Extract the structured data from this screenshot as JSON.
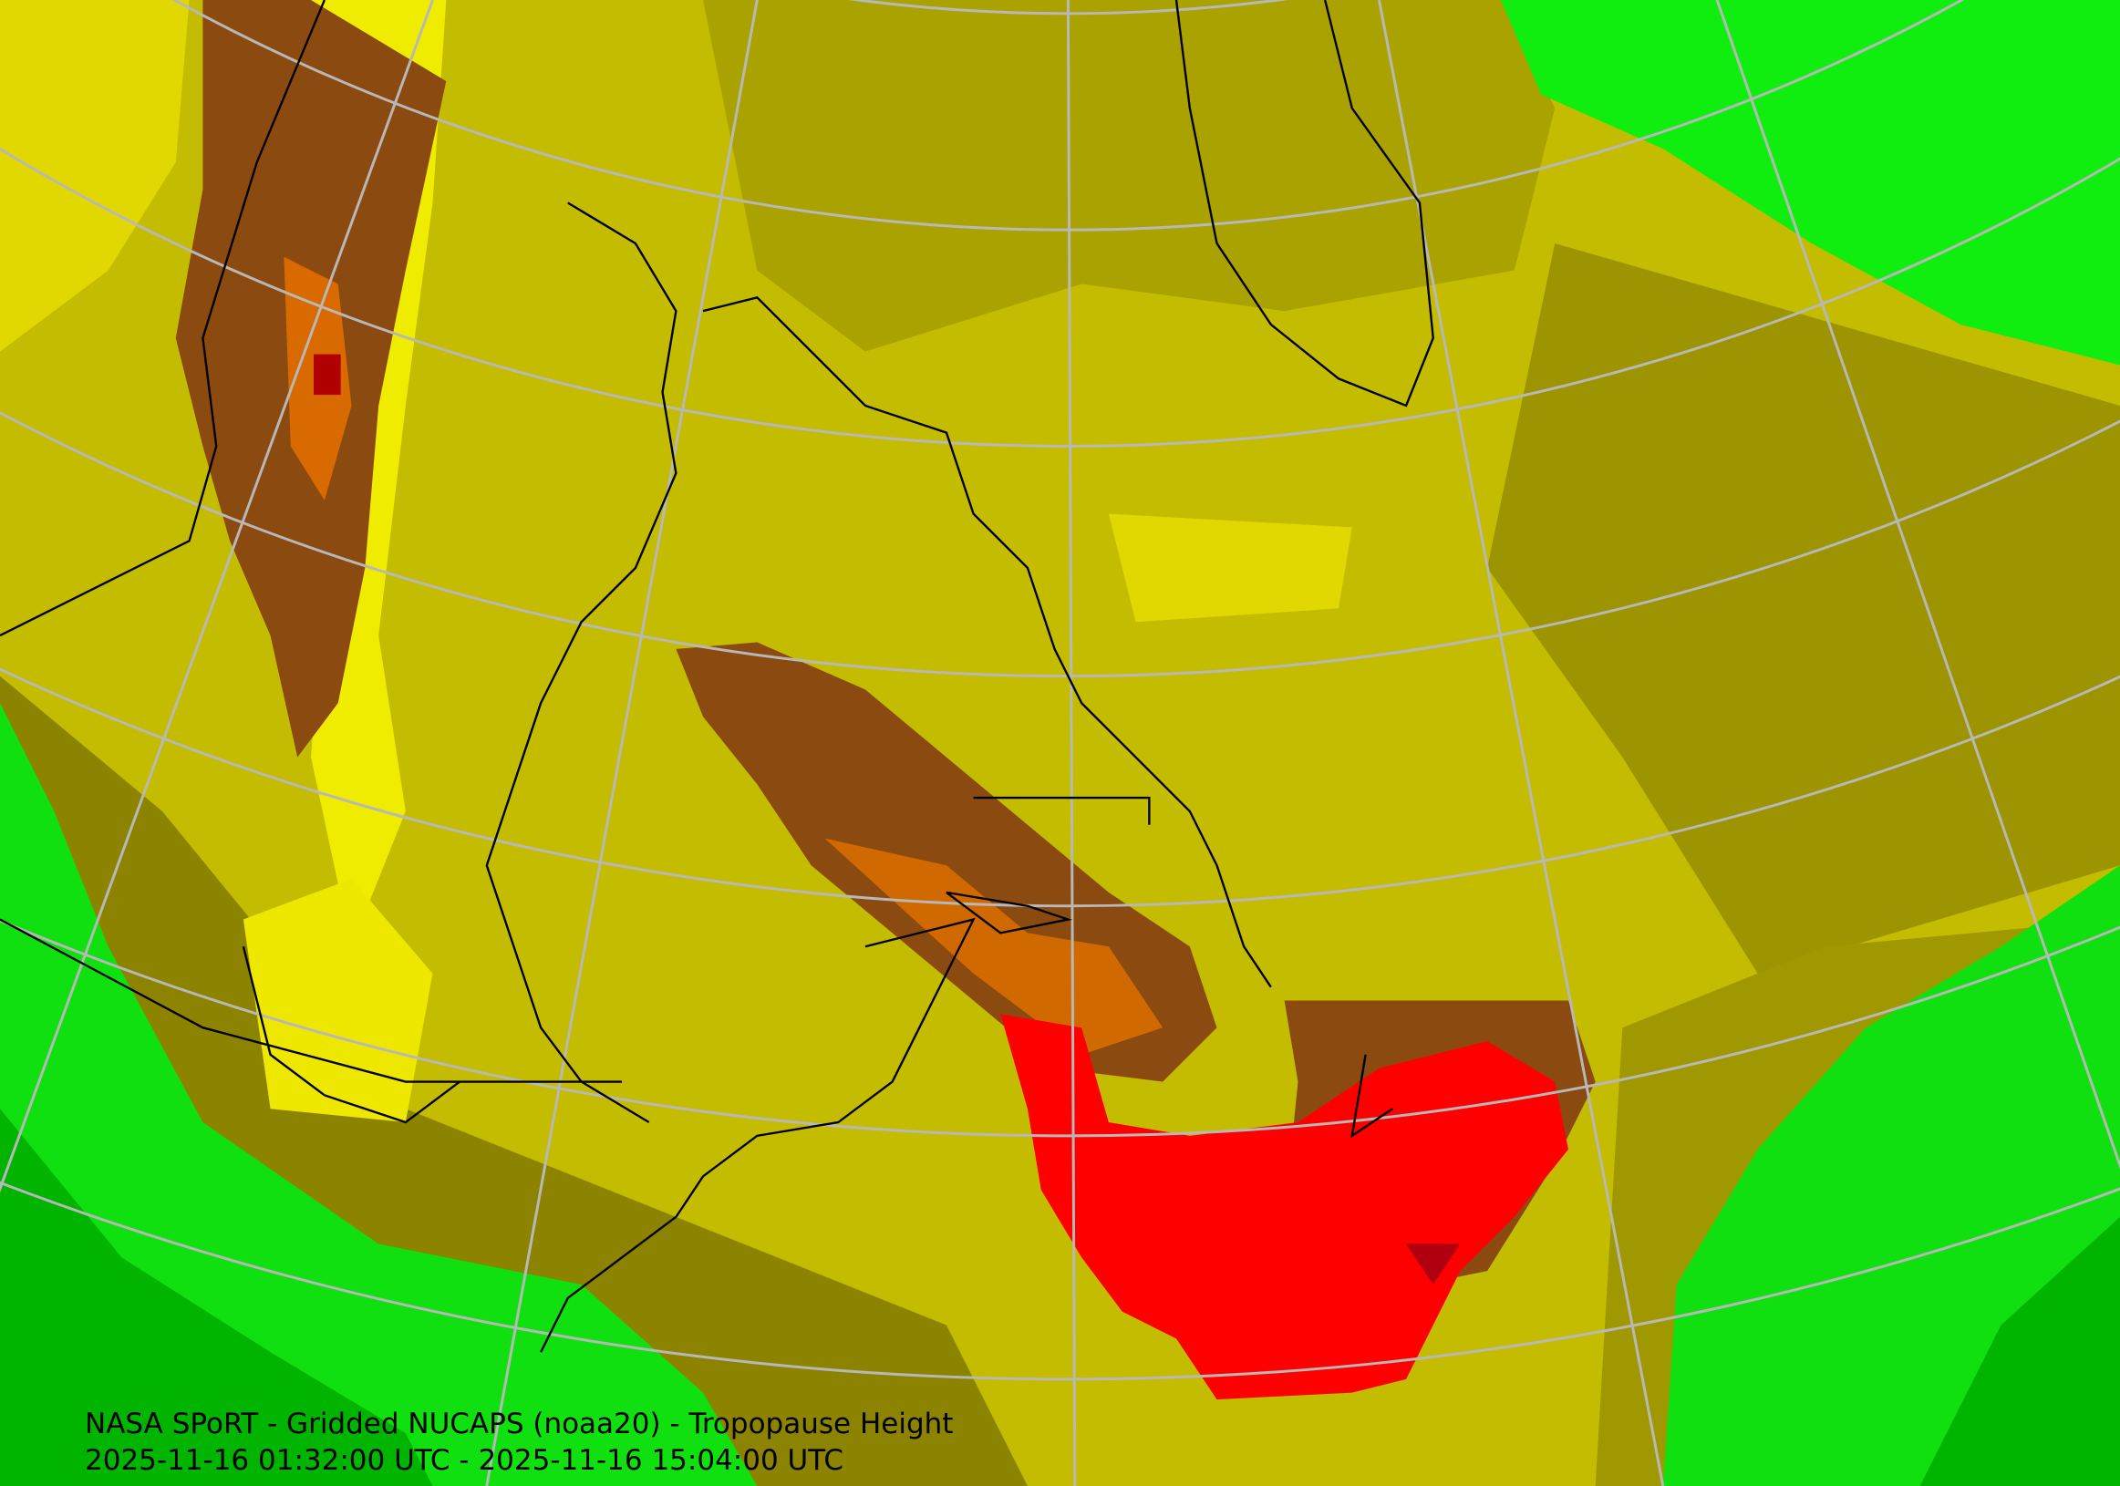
{
  "caption": {
    "title": "NASA SPoRT - Gridded NUCAPS (noaa20) - Tropopause Height",
    "time_range": "2025-11-16 01:32:00 UTC - 2025-11-16 15:04:00 UTC"
  }
}
